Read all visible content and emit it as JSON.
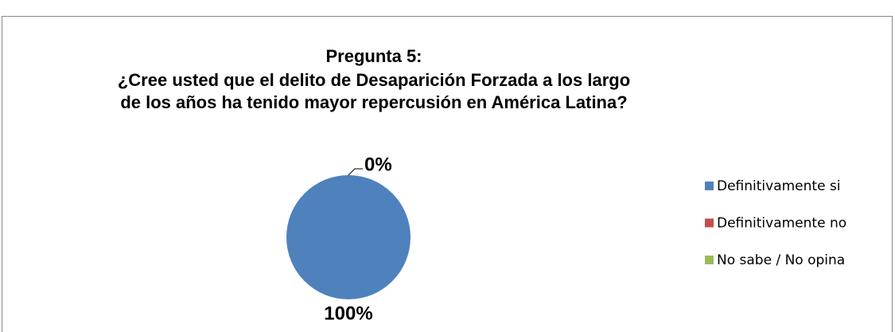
{
  "chart_data": {
    "type": "pie",
    "title": [
      "Pregunta 5:",
      "¿Cree usted que el delito de Desaparición Forzada a los largo",
      "de los años ha tenido mayor repercusión en América Latina?"
    ],
    "categories": [
      "Definitivamente si",
      "Definitivamente no",
      "No sabe / No opina"
    ],
    "values": [
      100,
      0,
      0
    ],
    "value_labels": [
      "100%",
      "0%",
      null
    ],
    "colors": [
      "#4f81bd",
      "#c0504d",
      "#9bbb59"
    ],
    "legend": "right"
  }
}
